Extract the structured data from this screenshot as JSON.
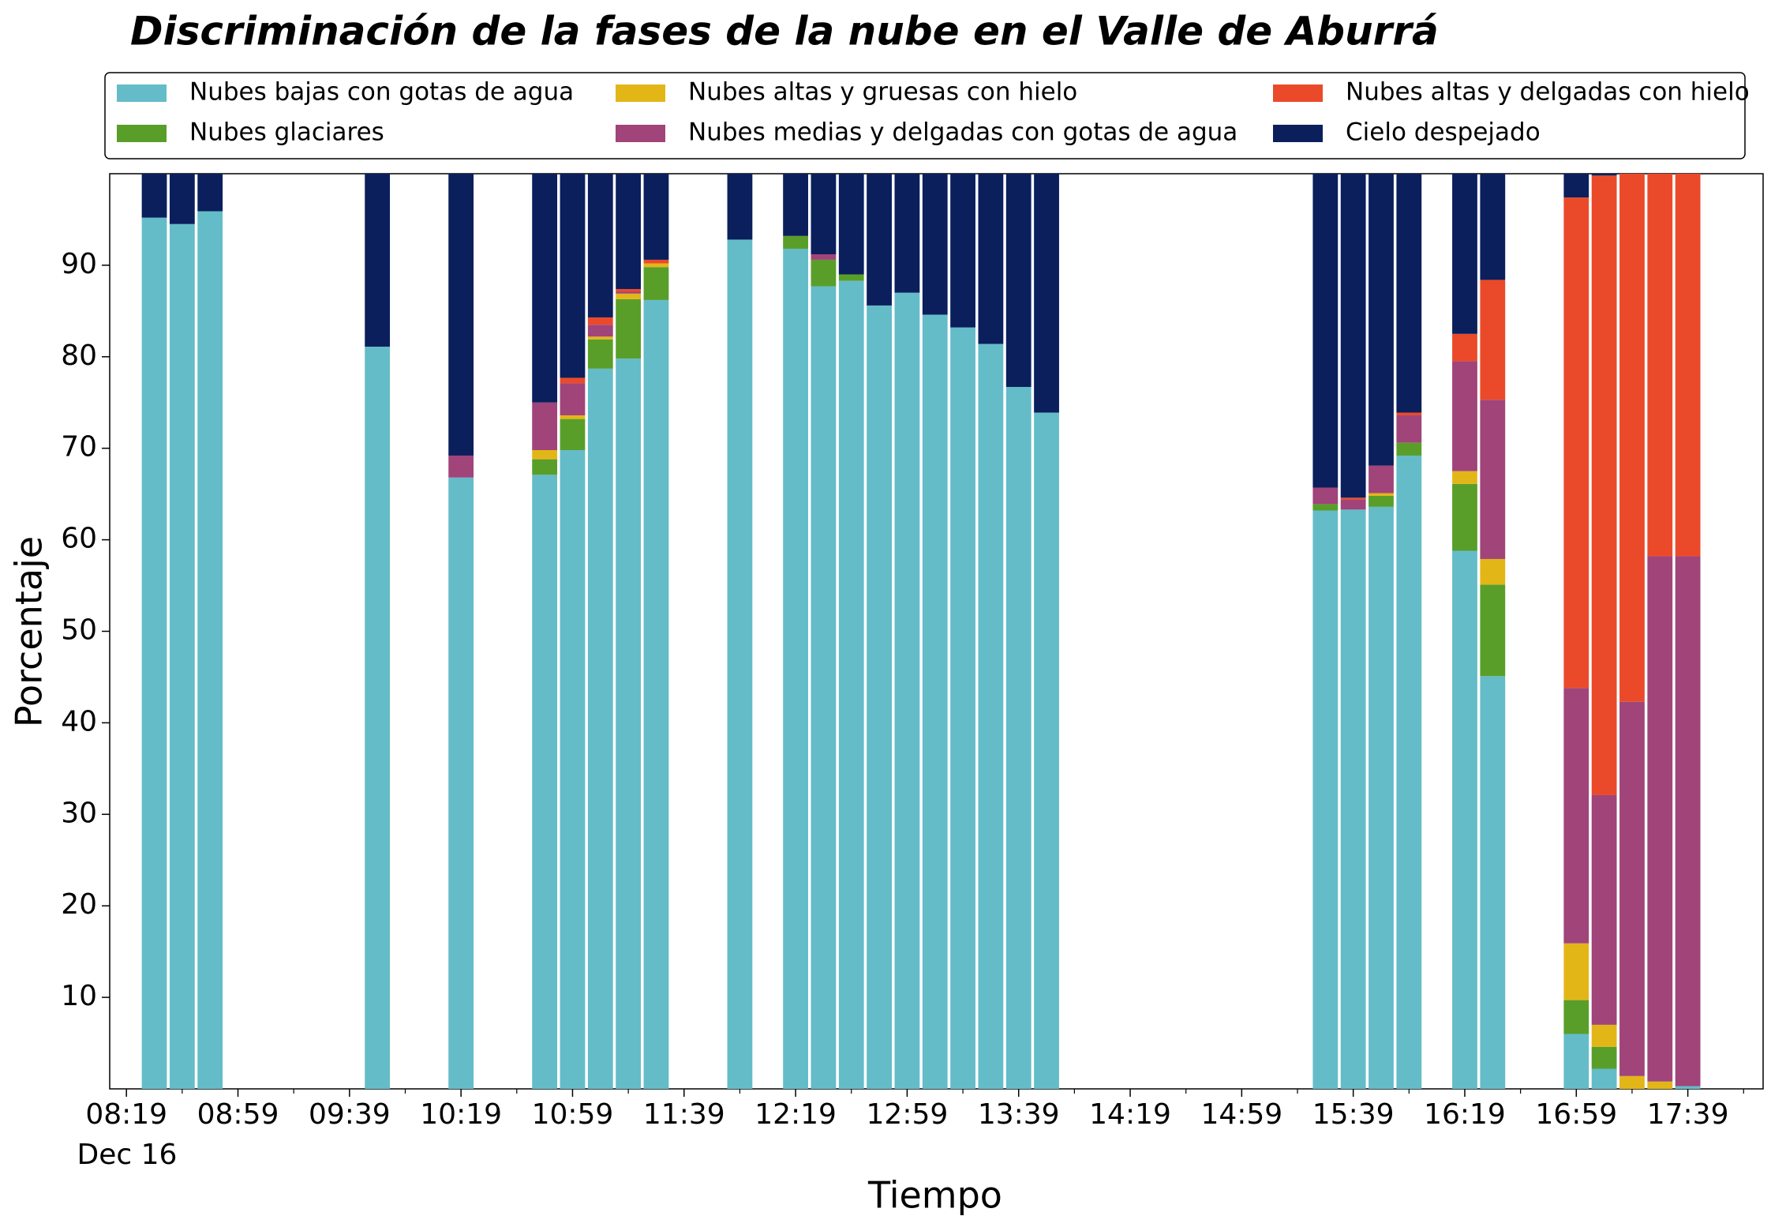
{
  "chart_data": {
    "type": "stacked_bar",
    "title": "Discriminación de la fases de la nube en el Valle de Aburrá",
    "xlabel": "Tiempo",
    "ylabel": "Porcentaje",
    "x_date_label": "Dec 16",
    "x": [
      "08:29",
      "08:39",
      "08:49",
      "09:49",
      "10:19",
      "10:49",
      "10:59",
      "11:09",
      "11:19",
      "11:29",
      "11:59",
      "12:19",
      "12:29",
      "12:39",
      "12:49",
      "12:59",
      "13:09",
      "13:19",
      "13:29",
      "13:39",
      "13:49",
      "15:29",
      "15:39",
      "15:49",
      "15:59",
      "16:19",
      "16:29",
      "16:59",
      "17:09",
      "17:19",
      "17:29",
      "17:39"
    ],
    "series": [
      {
        "name": "Nubes bajas con gotas de agua",
        "color": "#64bcc8",
        "values": [
          95.2,
          94.5,
          95.9,
          81.1,
          66.8,
          67.1,
          69.8,
          78.7,
          79.8,
          86.2,
          92.8,
          91.8,
          87.7,
          88.3,
          85.6,
          87.0,
          84.6,
          83.2,
          81.4,
          76.7,
          73.9,
          63.2,
          63.3,
          63.6,
          69.2,
          58.8,
          45.1,
          6.0,
          2.2,
          0,
          0,
          0.3
        ]
      },
      {
        "name": "Nubes glaciares",
        "color": "#5a9e2a",
        "values": [
          0,
          0,
          0,
          0,
          0,
          1.7,
          3.4,
          3.2,
          6.5,
          3.6,
          0,
          1.4,
          2.9,
          0.7,
          0,
          0,
          0,
          0,
          0,
          0,
          0,
          0.7,
          0,
          1.2,
          1.4,
          7.3,
          10.0,
          3.7,
          2.4,
          0,
          0,
          0
        ]
      },
      {
        "name": "Nubes altas y gruesas con hielo",
        "color": "#e3b618",
        "values": [
          0,
          0,
          0,
          0,
          0,
          1.0,
          0.4,
          0.3,
          0.6,
          0.4,
          0,
          0,
          0,
          0,
          0,
          0,
          0,
          0,
          0,
          0,
          0,
          0,
          0,
          0.3,
          0,
          1.4,
          2.8,
          6.2,
          2.4,
          1.4,
          0.8,
          0
        ]
      },
      {
        "name": "Nubes medias y delgadas con gotas de agua",
        "color": "#a0447a",
        "values": [
          0,
          0,
          0,
          0,
          2.4,
          5.2,
          3.5,
          1.3,
          0.2,
          0,
          0,
          0,
          0.6,
          0,
          0,
          0,
          0,
          0,
          0,
          0,
          0,
          1.8,
          1.1,
          3.0,
          3.0,
          12.0,
          17.4,
          27.9,
          25.1,
          40.9,
          57.4,
          57.9
        ]
      },
      {
        "name": "Nubes altas y delgadas con hielo",
        "color": "#ea4a2a",
        "values": [
          0,
          0,
          0,
          0,
          0,
          0,
          0.6,
          0.8,
          0.3,
          0.4,
          0,
          0,
          0,
          0,
          0,
          0,
          0,
          0,
          0,
          0,
          0,
          0,
          0.2,
          0,
          0.3,
          3.0,
          13.1,
          53.6,
          67.7,
          57.7,
          41.8,
          41.8
        ]
      },
      {
        "name": "Cielo despejado",
        "color": "#0a1f5c",
        "values": [
          4.8,
          5.5,
          4.1,
          18.9,
          30.8,
          25.0,
          22.3,
          15.7,
          12.6,
          9.4,
          7.2,
          6.8,
          8.8,
          11.0,
          14.4,
          13.0,
          15.4,
          16.8,
          18.6,
          23.3,
          26.1,
          34.3,
          35.4,
          31.9,
          26.1,
          17.5,
          11.6,
          2.6,
          0.2,
          0,
          0,
          0
        ]
      }
    ],
    "xlim": [
      "08:13",
      "18:06"
    ],
    "xticks": [
      "08:19",
      "08:59",
      "09:39",
      "10:19",
      "10:59",
      "11:39",
      "12:19",
      "12:59",
      "13:39",
      "14:19",
      "14:59",
      "15:39",
      "16:19",
      "16:59",
      "17:39"
    ],
    "xminor_ticks": [
      "08:39",
      "09:19",
      "09:59",
      "10:39",
      "11:19",
      "11:59",
      "12:39",
      "13:19",
      "13:59",
      "14:39",
      "15:19",
      "15:59",
      "16:39",
      "17:19",
      "17:59"
    ],
    "ylim": [
      0,
      100
    ],
    "yticks": [
      10,
      20,
      30,
      40,
      50,
      60,
      70,
      80,
      90
    ],
    "legend": "top",
    "grid": false
  }
}
